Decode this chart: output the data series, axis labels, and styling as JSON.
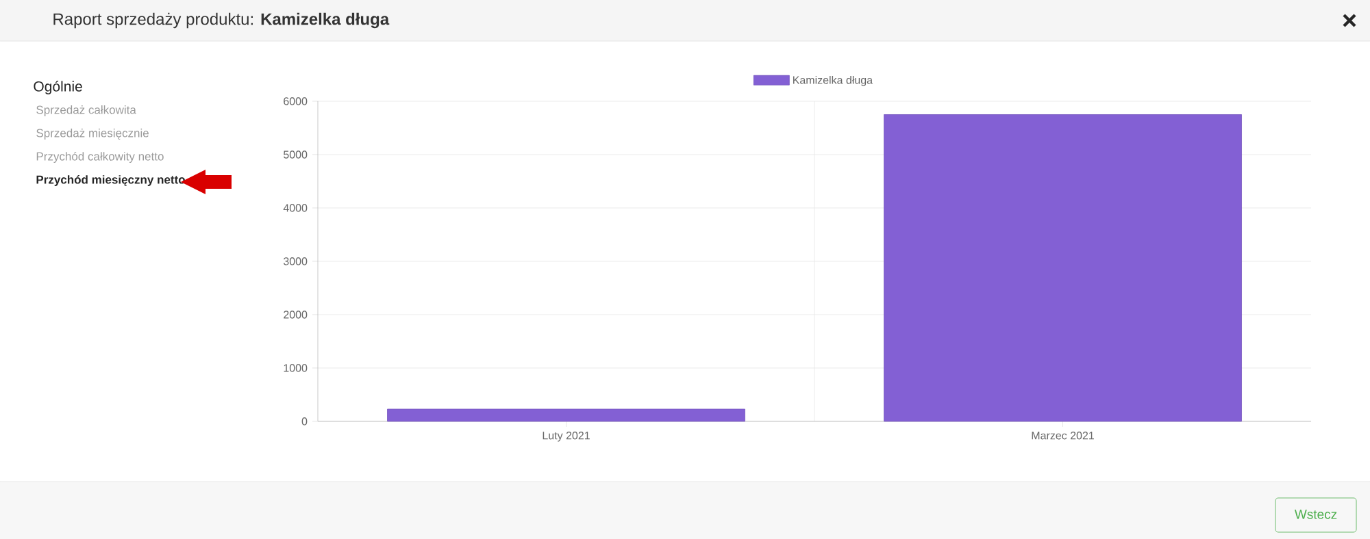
{
  "chart_data": {
    "type": "bar",
    "title": "Raport sprzedaży produktu: **Kamizelka długa**",
    "categories": [
      "Luty 2021",
      "Marzec 2021"
    ],
    "series": [
      {
        "name": "Kamizelka długa",
        "color": "#8360d4",
        "values": [
          230,
          5750
        ]
      }
    ],
    "ylim": [
      0,
      6000
    ],
    "yticks": [
      0,
      1000,
      2000,
      3000,
      4000,
      5000,
      6000
    ],
    "grid": true,
    "legend": "top",
    "annotations": [
      "Ogólnie",
      "Sprzedaż całkowita",
      "Sprzedaż miesięcznie",
      "Przychód całkowity netto",
      "Przychód miesięczny netto",
      "Wstecz"
    ]
  }
}
